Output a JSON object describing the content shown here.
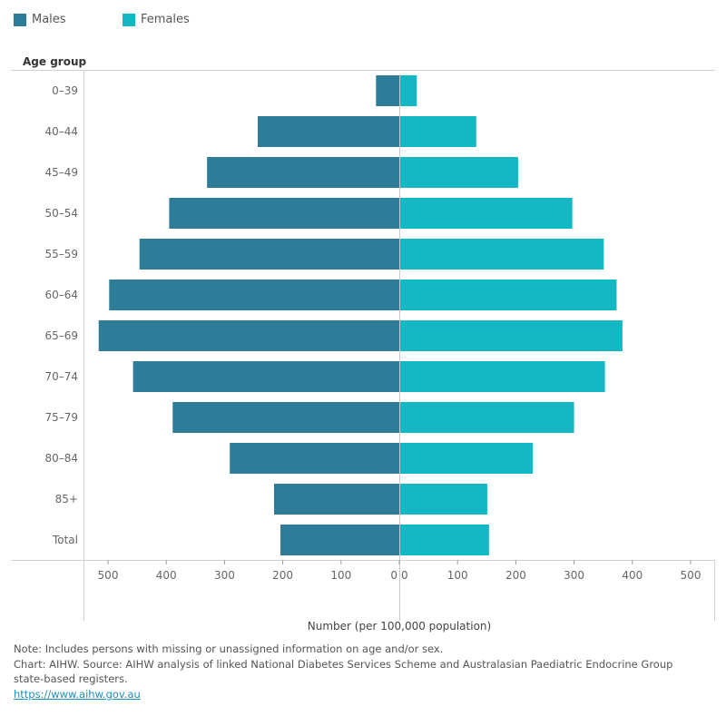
{
  "chart_data": {
    "type": "bar",
    "orientation": "horizontal",
    "layout": "population-pyramid",
    "ylabel": "Age group",
    "xlabel": "Number (per 100,000 population)",
    "categories": [
      "0–39",
      "40–44",
      "45–49",
      "50–54",
      "55–59",
      "60–64",
      "65–69",
      "70–74",
      "75–79",
      "80–84",
      "85+",
      "Total"
    ],
    "series": [
      {
        "name": "Males",
        "color": "#2e7d98",
        "side": "left",
        "values": [
          40,
          243,
          330,
          395,
          446,
          498,
          516,
          457,
          389,
          291,
          215,
          204
        ]
      },
      {
        "name": "Females",
        "color": "#14b8c4",
        "side": "right",
        "values": [
          30,
          132,
          204,
          297,
          351,
          373,
          383,
          353,
          300,
          229,
          151,
          154
        ]
      }
    ],
    "xlim": [
      0,
      500
    ],
    "xticks": [
      0,
      100,
      200,
      300,
      400,
      500
    ],
    "legend_position": "top-left",
    "grid": false
  },
  "notes": {
    "note": "Note: Includes persons with missing or unassigned information on age and/or sex.",
    "source_line1": "Chart: AIHW.  Source: AIHW analysis of linked National Diabetes Services Scheme and Australasian Paediatric Endocrine Group",
    "source_line2": "state-based registers.",
    "link": "https://www.aihw.gov.au"
  }
}
